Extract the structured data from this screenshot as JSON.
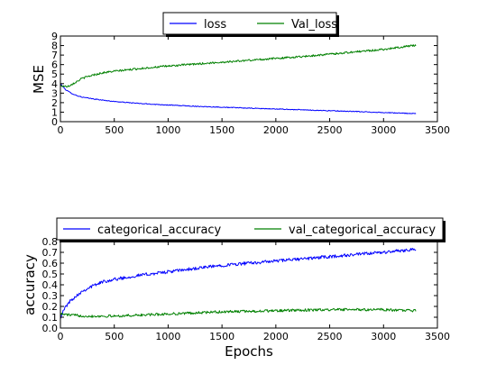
{
  "chart_data": [
    {
      "type": "line",
      "title": "",
      "xlabel": "",
      "ylabel": "MSE",
      "xlim": [
        0,
        3500
      ],
      "ylim": [
        0,
        9
      ],
      "xticks": [
        0,
        500,
        1000,
        1500,
        2000,
        2500,
        3000,
        3500
      ],
      "yticks": [
        0,
        1,
        2,
        3,
        4,
        5,
        6,
        7,
        8,
        9
      ],
      "grid": false,
      "legend": "top-center, outside",
      "series": [
        {
          "name": "loss",
          "color": "#0000ff",
          "noise": 0.04,
          "x": [
            0,
            25,
            50,
            100,
            150,
            200,
            300,
            400,
            500,
            750,
            1000,
            1250,
            1500,
            1750,
            2000,
            2250,
            2500,
            2750,
            3000,
            3200,
            3300
          ],
          "y": [
            4.0,
            3.65,
            3.35,
            3.0,
            2.75,
            2.58,
            2.4,
            2.25,
            2.12,
            1.9,
            1.75,
            1.62,
            1.52,
            1.42,
            1.33,
            1.24,
            1.15,
            1.06,
            0.96,
            0.88,
            0.85
          ]
        },
        {
          "name": "Val_loss",
          "color": "#008000",
          "noise": 0.1,
          "x": [
            0,
            25,
            50,
            75,
            100,
            150,
            200,
            300,
            400,
            500,
            750,
            1000,
            1250,
            1500,
            1750,
            2000,
            2250,
            2500,
            2750,
            3000,
            3200,
            3300
          ],
          "y": [
            3.8,
            3.75,
            3.7,
            3.75,
            3.9,
            4.2,
            4.55,
            4.9,
            5.15,
            5.3,
            5.6,
            5.85,
            6.05,
            6.25,
            6.45,
            6.65,
            6.85,
            7.1,
            7.35,
            7.6,
            7.9,
            8.05
          ]
        }
      ]
    },
    {
      "type": "line",
      "title": "",
      "xlabel": "Epochs",
      "ylabel": "accuracy",
      "xlim": [
        0,
        3500
      ],
      "ylim": [
        0,
        0.8
      ],
      "xticks": [
        0,
        500,
        1000,
        1500,
        2000,
        2500,
        3000,
        3500
      ],
      "yticks": [
        0.0,
        0.1,
        0.2,
        0.3,
        0.4,
        0.5,
        0.6,
        0.7,
        0.8
      ],
      "grid": false,
      "legend": "top-center, outside",
      "series": [
        {
          "name": "categorical_accuracy",
          "color": "#0000ff",
          "noise": 0.015,
          "x": [
            0,
            50,
            100,
            200,
            300,
            400,
            500,
            750,
            1000,
            1250,
            1500,
            1750,
            2000,
            2250,
            2500,
            2750,
            3000,
            3200,
            3300
          ],
          "y": [
            0.1,
            0.2,
            0.26,
            0.34,
            0.39,
            0.43,
            0.45,
            0.49,
            0.52,
            0.55,
            0.58,
            0.6,
            0.62,
            0.64,
            0.66,
            0.68,
            0.7,
            0.72,
            0.73
          ]
        },
        {
          "name": "val_categorical_accuracy",
          "color": "#008000",
          "noise": 0.012,
          "x": [
            0,
            100,
            250,
            500,
            750,
            1000,
            1500,
            2000,
            2500,
            3000,
            3300
          ],
          "y": [
            0.13,
            0.12,
            0.11,
            0.11,
            0.12,
            0.13,
            0.15,
            0.16,
            0.17,
            0.17,
            0.16
          ]
        }
      ]
    }
  ]
}
